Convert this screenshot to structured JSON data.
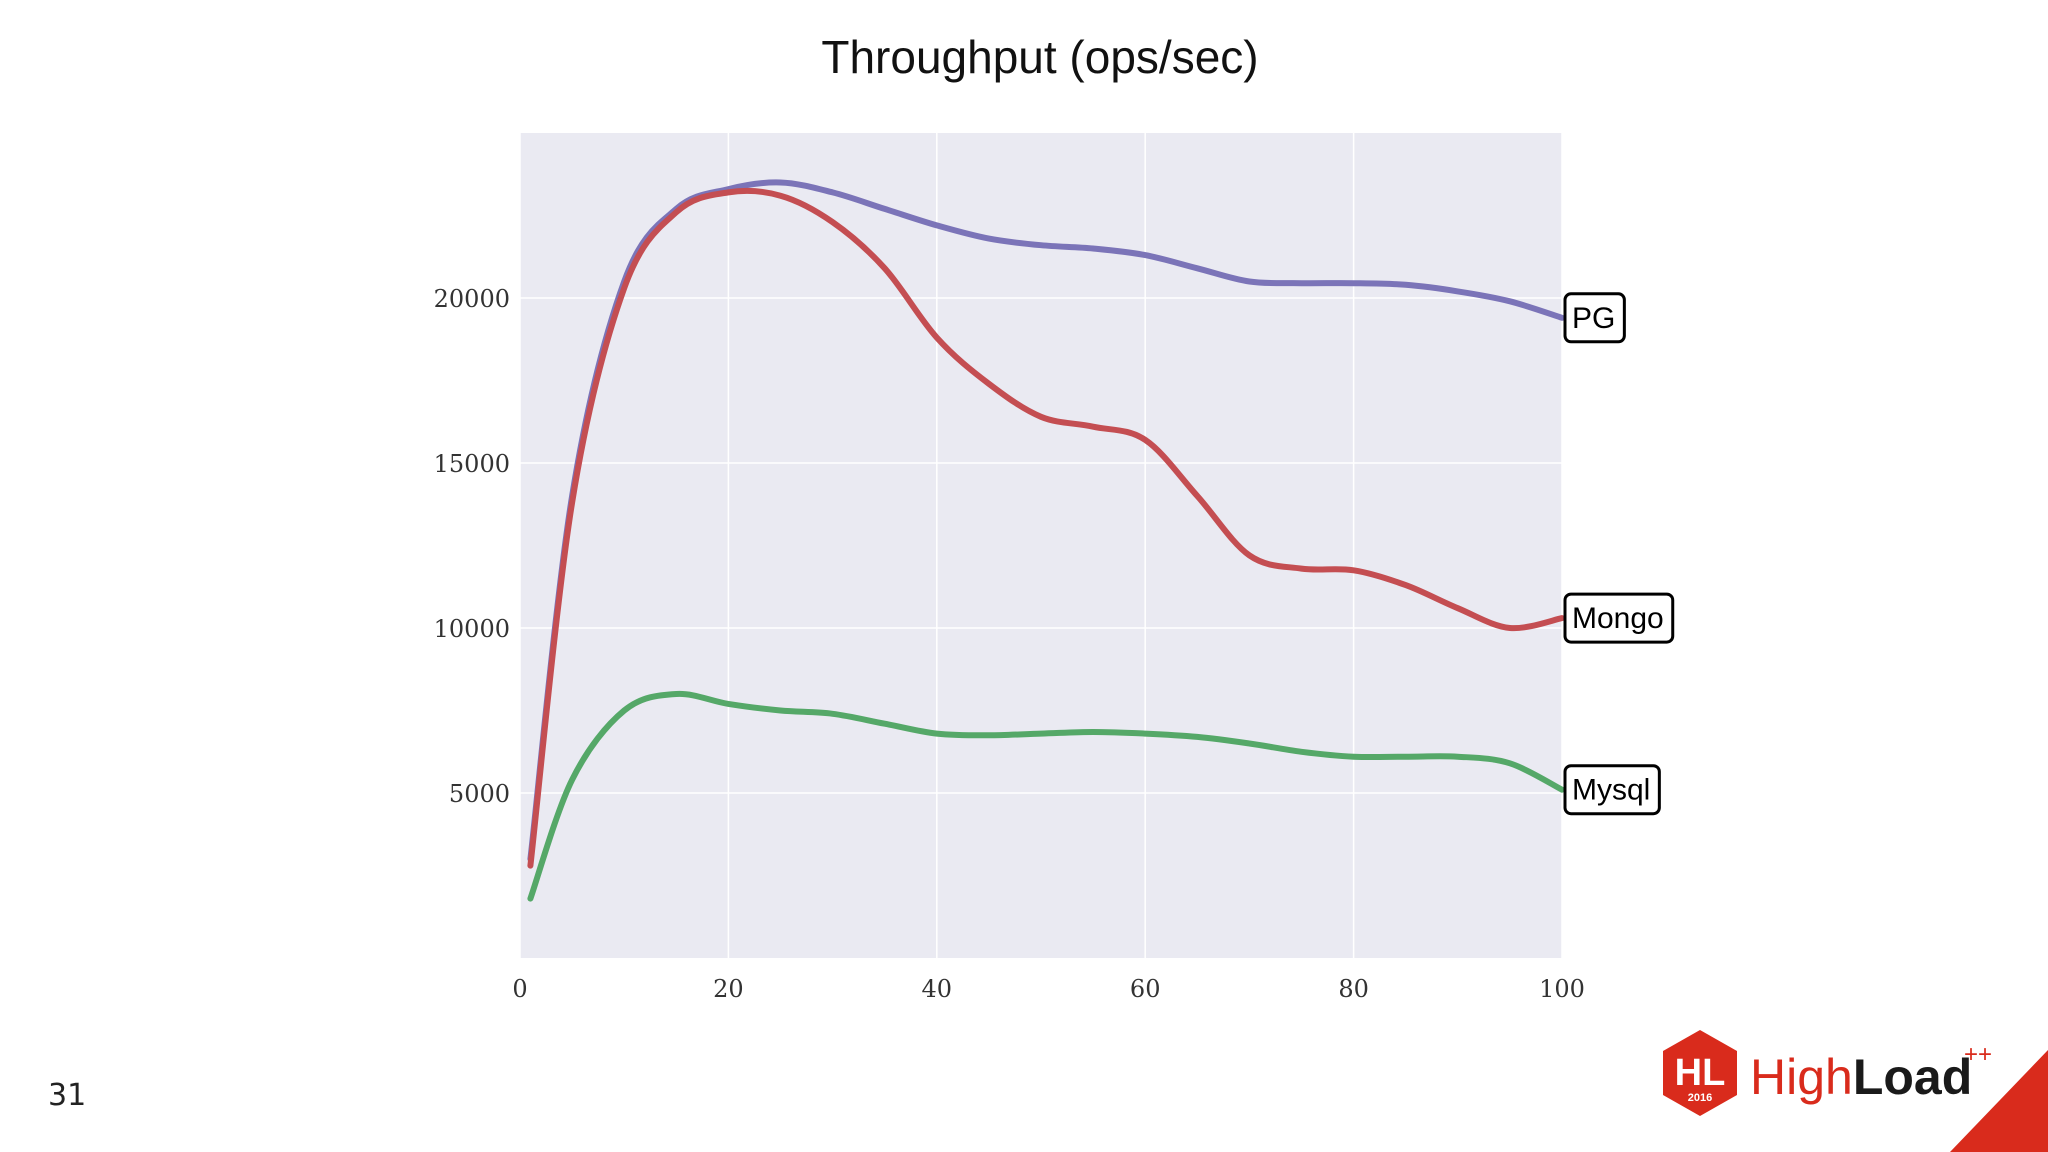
{
  "slide": {
    "page_number": "31"
  },
  "logo": {
    "badge_text": "HL",
    "badge_year": "2016",
    "brand_light": "High",
    "brand_bold": "Load",
    "brand_sup": "++",
    "color_red": "#d92b1c",
    "color_dark": "#1a1a1a"
  },
  "chart_data": {
    "type": "line",
    "title": "Throughput (ops/sec)",
    "xlabel": "",
    "ylabel": "",
    "xlim": [
      0,
      100
    ],
    "ylim": [
      0,
      25000
    ],
    "xticks": [
      0,
      20,
      40,
      60,
      80,
      100
    ],
    "yticks": [
      5000,
      10000,
      15000,
      20000
    ],
    "grid": true,
    "background": "#eaeaf2",
    "legend": "inline labels at right end of each line",
    "x": [
      1,
      5,
      10,
      15,
      20,
      25,
      30,
      35,
      40,
      45,
      50,
      55,
      60,
      65,
      70,
      75,
      80,
      85,
      90,
      95,
      100
    ],
    "series": [
      {
        "name": "PG",
        "color": "#7b74b8",
        "values": [
          3000,
          14000,
          20500,
          22700,
          23300,
          23500,
          23200,
          22700,
          22200,
          21800,
          21600,
          21500,
          21300,
          20900,
          20500,
          20450,
          20450,
          20400,
          20200,
          19900,
          19400
        ]
      },
      {
        "name": "Mongo",
        "color": "#c44e52",
        "values": [
          2800,
          13800,
          20300,
          22600,
          23200,
          23100,
          22300,
          20900,
          18800,
          17400,
          16400,
          16100,
          15700,
          14000,
          12200,
          11800,
          11750,
          11300,
          10600,
          10000,
          10300
        ]
      },
      {
        "name": "Mysql",
        "color": "#55a868",
        "values": [
          1800,
          5400,
          7500,
          8000,
          7700,
          7500,
          7400,
          7100,
          6800,
          6750,
          6800,
          6850,
          6800,
          6700,
          6500,
          6250,
          6100,
          6100,
          6100,
          5900,
          5100
        ]
      }
    ]
  }
}
